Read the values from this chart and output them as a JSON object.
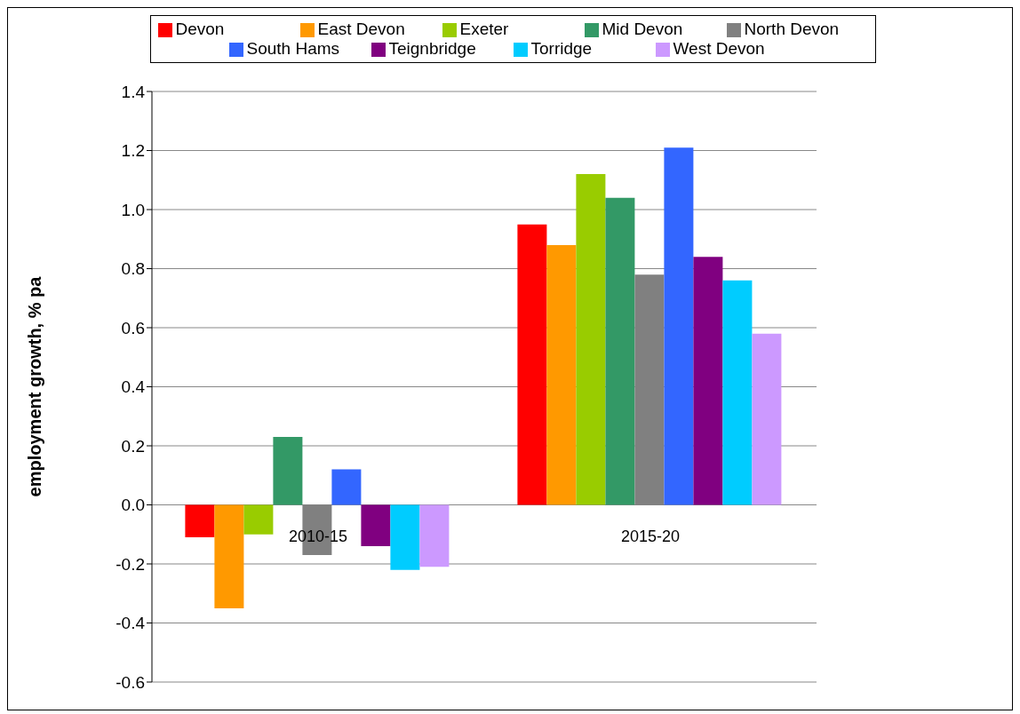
{
  "chart_data": {
    "type": "bar",
    "ylabel": "employment growth, % pa",
    "categories": [
      "2010-15",
      "2015-20"
    ],
    "series": [
      {
        "name": "Devon",
        "color": "#ff0000",
        "values": [
          -0.11,
          0.95
        ]
      },
      {
        "name": "East Devon",
        "color": "#ff9900",
        "values": [
          -0.35,
          0.88
        ]
      },
      {
        "name": "Exeter",
        "color": "#99cc00",
        "values": [
          -0.1,
          1.12
        ]
      },
      {
        "name": "Mid Devon",
        "color": "#339966",
        "values": [
          0.23,
          1.04
        ]
      },
      {
        "name": "North Devon",
        "color": "#808080",
        "values": [
          -0.17,
          0.78
        ]
      },
      {
        "name": "South Hams",
        "color": "#3366ff",
        "values": [
          0.12,
          1.21
        ]
      },
      {
        "name": "Teignbridge",
        "color": "#800080",
        "values": [
          -0.14,
          0.84
        ]
      },
      {
        "name": "Torridge",
        "color": "#00ccff",
        "values": [
          -0.22,
          0.76
        ]
      },
      {
        "name": "West Devon",
        "color": "#cc99ff",
        "values": [
          -0.21,
          0.58
        ]
      }
    ],
    "ylim": [
      -0.6,
      1.4
    ],
    "yticks": [
      {
        "value": -0.6,
        "label": "-0.6"
      },
      {
        "value": -0.4,
        "label": "-0.4"
      },
      {
        "value": -0.2,
        "label": "-0.2"
      },
      {
        "value": 0,
        "label": "0.0"
      },
      {
        "value": 0.2,
        "label": "0.2"
      },
      {
        "value": 0.4,
        "label": "0.4"
      },
      {
        "value": 0.6,
        "label": "0.6"
      },
      {
        "value": 0.8,
        "label": "0.8"
      },
      {
        "value": 1,
        "label": "1.0"
      },
      {
        "value": 1.2,
        "label": "1.2"
      },
      {
        "value": 1.4,
        "label": "1.4"
      }
    ],
    "grid": "y",
    "legend": "top"
  }
}
